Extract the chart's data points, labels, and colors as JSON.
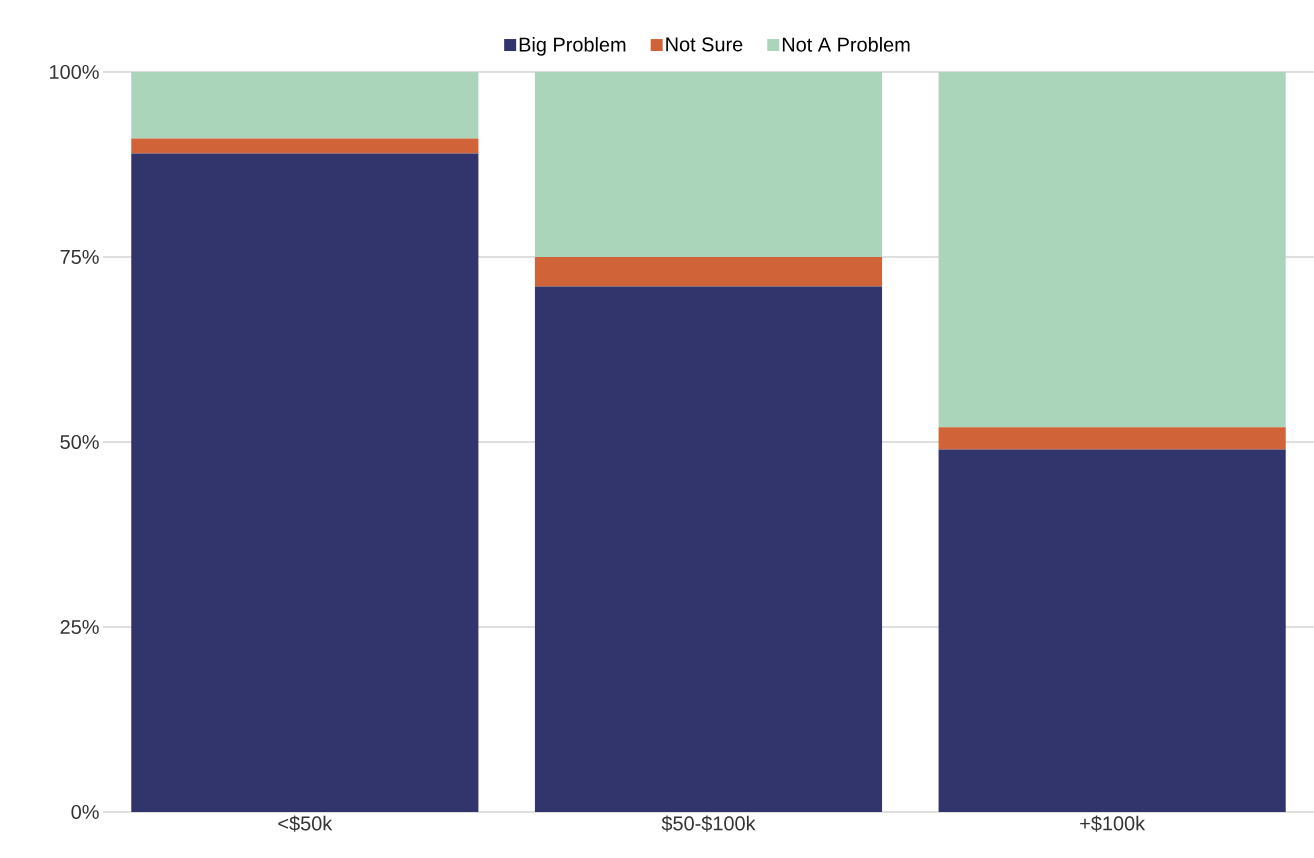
{
  "chart_data": {
    "type": "bar",
    "stacked": true,
    "categories": [
      "<$50k",
      "$50-$100k",
      "+$100k"
    ],
    "series": [
      {
        "name": "Big Problem",
        "color": "#31356b",
        "values": [
          89,
          71,
          49
        ]
      },
      {
        "name": "Not Sure",
        "color": "#d06337",
        "values": [
          2,
          4,
          3
        ]
      },
      {
        "name": "Not A Problem",
        "color": "#aad5bb",
        "values": [
          9,
          25,
          48
        ]
      }
    ],
    "ylim": [
      0,
      100
    ],
    "yticks": [
      {
        "value": 0,
        "label": "0%"
      },
      {
        "value": 25,
        "label": "25%"
      },
      {
        "value": 50,
        "label": "50%"
      },
      {
        "value": 75,
        "label": "75%"
      },
      {
        "value": 100,
        "label": "100%"
      }
    ],
    "grid": "y",
    "legend": "top"
  }
}
